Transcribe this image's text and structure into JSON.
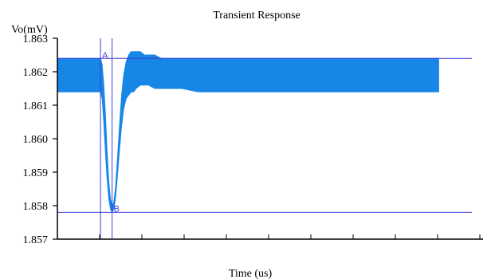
{
  "chart_data": {
    "type": "line",
    "title": "Transient Response",
    "ylabel": "Vo(mV)",
    "xlabel": "Time (us)",
    "ylim": [
      1.857,
      1.863
    ],
    "xlim": [
      0,
      1
    ],
    "y_ticks": [
      "1.857",
      "1.858",
      "1.859",
      "1.860",
      "1.861",
      "1.862",
      "1.863"
    ],
    "grid": false,
    "colors": {
      "signal": "#1787e6",
      "cursor": "#3f3fd6",
      "axis": "#000000"
    },
    "envelope": {
      "name": "",
      "x": [
        0.0,
        0.104,
        0.108,
        0.112,
        0.116,
        0.12,
        0.124,
        0.128,
        0.132,
        0.136,
        0.14,
        0.145,
        0.15,
        0.155,
        0.16,
        0.166,
        0.172,
        0.178,
        0.184,
        0.19,
        0.2,
        0.21,
        0.22,
        0.235,
        0.25,
        0.27,
        0.3,
        0.34,
        0.4,
        0.5,
        0.6,
        0.7,
        0.8,
        0.9,
        0.92
      ],
      "upper": [
        1.8624,
        1.8624,
        1.8622,
        1.8616,
        1.8607,
        1.8596,
        1.8587,
        1.8582,
        1.858,
        1.8581,
        1.8585,
        1.8594,
        1.8604,
        1.8613,
        1.8619,
        1.8623,
        1.8625,
        1.8626,
        1.8626,
        1.8626,
        1.8626,
        1.8625,
        1.8625,
        1.8625,
        1.8624,
        1.8624,
        1.8624,
        1.8624,
        1.8624,
        1.8624,
        1.8624,
        1.8624,
        1.8624,
        1.8624,
        1.8624
      ],
      "lower": [
        1.8614,
        1.8614,
        1.8612,
        1.8605,
        1.8596,
        1.8588,
        1.8582,
        1.8579,
        1.8578,
        1.8579,
        1.8582,
        1.8589,
        1.8597,
        1.8604,
        1.8609,
        1.8612,
        1.8613,
        1.8614,
        1.8614,
        1.8615,
        1.8616,
        1.8616,
        1.8616,
        1.8615,
        1.8615,
        1.8615,
        1.8615,
        1.8614,
        1.8614,
        1.8614,
        1.8614,
        1.8614,
        1.8614,
        1.8614,
        1.8614
      ]
    },
    "cursors": [
      {
        "label": "A",
        "x": 0.104,
        "y": 1.8624
      },
      {
        "label": "B",
        "x": 0.132,
        "y": 1.8578
      }
    ]
  }
}
